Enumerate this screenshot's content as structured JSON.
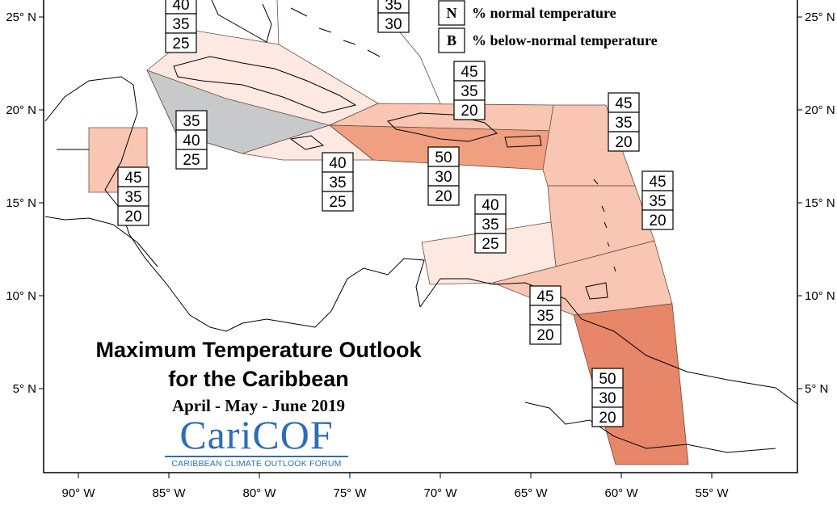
{
  "title": {
    "line1": "Maximum Temperature Outlook",
    "line2": "for the Caribbean",
    "period": "April - May - June 2019"
  },
  "logo": {
    "main": "CariCOF",
    "subtitle": "CARIBBEAN CLIMATE OUTLOOK FORUM"
  },
  "legend": [
    {
      "code": "N",
      "label": "% normal temperature"
    },
    {
      "code": "B",
      "label": "% below-normal temperature"
    }
  ],
  "axes": {
    "x_ticks": [
      "90° W",
      "85° W",
      "80° W",
      "75° W",
      "70° W",
      "65° W",
      "60° W",
      "55° W"
    ],
    "y_ticks": [
      "25° N",
      "20° N",
      "15° N",
      "10° N",
      "5° N"
    ]
  },
  "colors": {
    "light": "#fde9e1",
    "medium": "#f8c6b2",
    "strong": "#f0a080",
    "darkest": "#e8866a",
    "gray": "#c8c9cb"
  },
  "regions": [
    {
      "id": "bahamas",
      "values": [
        "35",
        "30"
      ],
      "fill": "none"
    },
    {
      "id": "cuba-north",
      "values": [
        "40",
        "35",
        "25"
      ],
      "fill": "light"
    },
    {
      "id": "cuba-west",
      "values": [
        "35",
        "40",
        "25"
      ],
      "fill": "gray"
    },
    {
      "id": "jamaica",
      "values": [
        "40",
        "35",
        "25"
      ],
      "fill": "light"
    },
    {
      "id": "belize",
      "values": [
        "45",
        "35",
        "20"
      ],
      "fill": "medium"
    },
    {
      "id": "hispaniola-north",
      "values": [
        "45",
        "35",
        "20"
      ],
      "fill": "medium"
    },
    {
      "id": "hispaniola-puerto-rico",
      "values": [
        "50",
        "30",
        "20"
      ],
      "fill": "strong"
    },
    {
      "id": "leeward-islands",
      "values": [
        "45",
        "35",
        "20"
      ],
      "fill": "medium"
    },
    {
      "id": "windward-islands",
      "values": [
        "45",
        "35",
        "20"
      ],
      "fill": "medium"
    },
    {
      "id": "abc-islands",
      "values": [
        "40",
        "35",
        "25"
      ],
      "fill": "light"
    },
    {
      "id": "trinidad-tobago",
      "values": [
        "45",
        "35",
        "20"
      ],
      "fill": "medium"
    },
    {
      "id": "guianas",
      "values": [
        "50",
        "30",
        "20"
      ],
      "fill": "darkest"
    }
  ]
}
